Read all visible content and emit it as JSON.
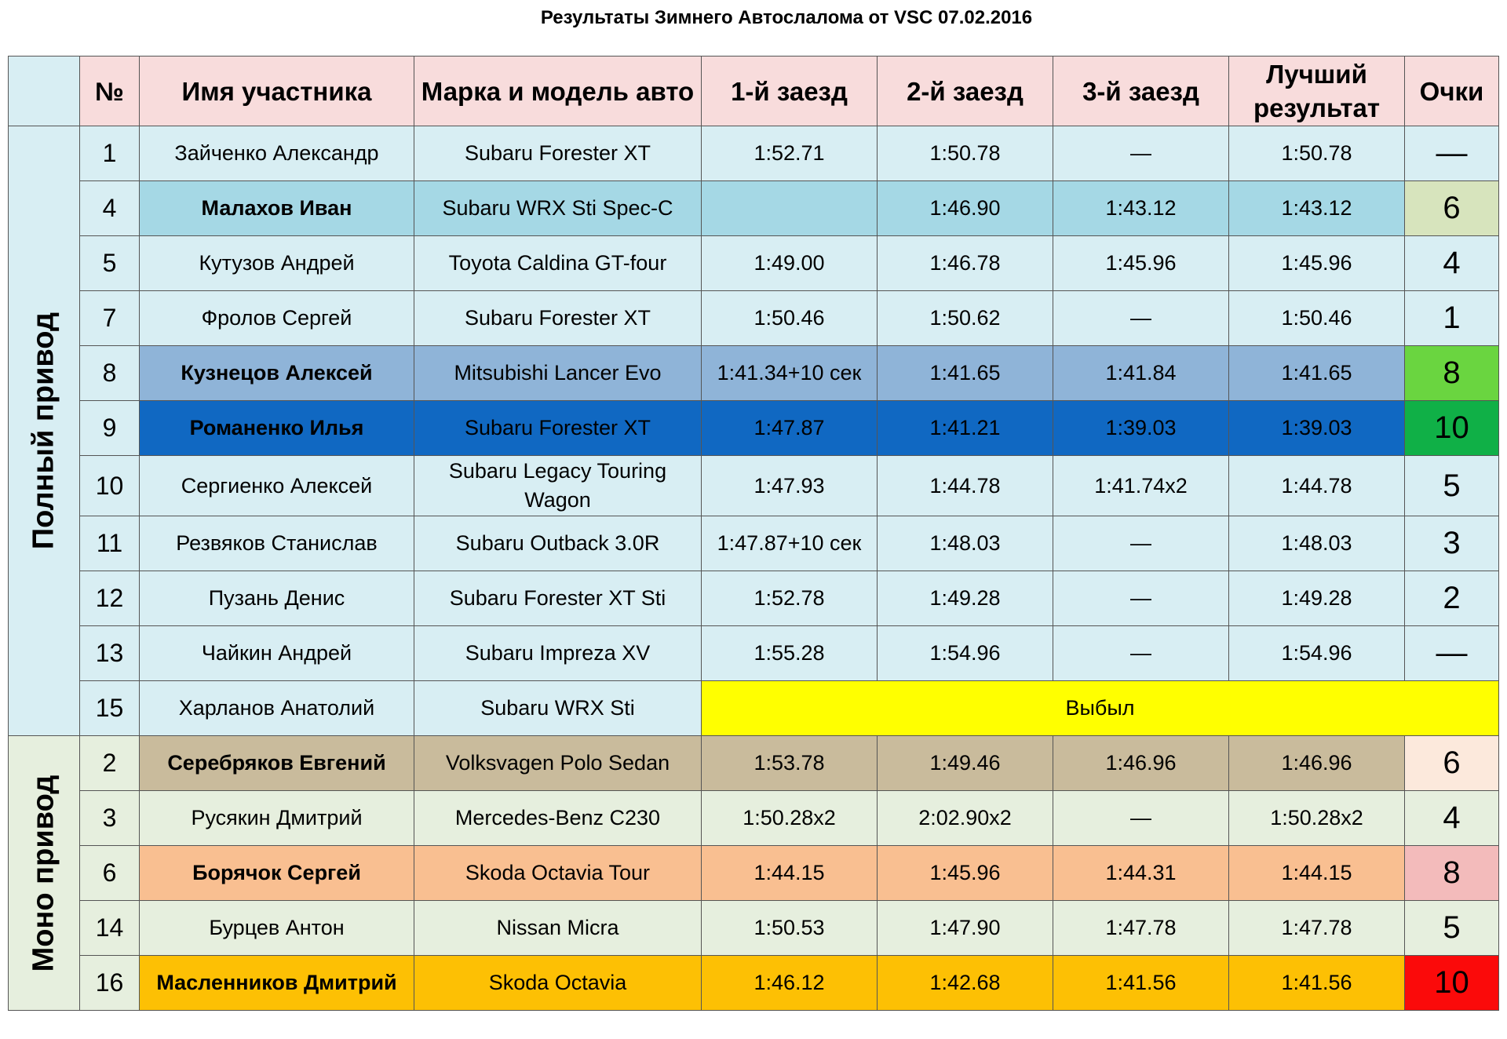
{
  "title": "Результаты Зимнего Автослалома от VSC  07.02.2016",
  "headers": {
    "num": "№",
    "name": "Имя участника",
    "car": "Марка и модель авто",
    "run1": "1-й заезд",
    "run2": "2-й заезд",
    "run3": "3-й заезд",
    "best": "Лучший результат",
    "points": "Очки"
  },
  "groups": {
    "awd": "Полный привод",
    "fwd": "Моно  привод"
  },
  "awd_rows": [
    {
      "num": "1",
      "name": "Зайченко Александр",
      "car": "Subaru Forester XT",
      "run1": "1:52.71",
      "run2": "1:50.78",
      "run3": "—",
      "best": "1:50.78",
      "points": "—"
    },
    {
      "num": "4",
      "name": "Малахов Иван",
      "car": "Subaru WRX Sti Spec-C",
      "run1": "",
      "run2": "1:46.90",
      "run3": "1:43.12",
      "best": "1:43.12",
      "points": "6"
    },
    {
      "num": "5",
      "name": "Кутузов Андрей",
      "car": "Toyota Caldina GT-four",
      "run1": "1:49.00",
      "run2": "1:46.78",
      "run3": "1:45.96",
      "best": "1:45.96",
      "points": "4"
    },
    {
      "num": "7",
      "name": "Фролов Сергей",
      "car": "Subaru Forester XT",
      "run1": "1:50.46",
      "run2": "1:50.62",
      "run3": "—",
      "best": "1:50.46",
      "points": "1"
    },
    {
      "num": "8",
      "name": "Кузнецов Алексей",
      "car": "Mitsubishi Lancer Evo",
      "run1": "1:41.34+10 сек",
      "run2": "1:41.65",
      "run3": "1:41.84",
      "best": "1:41.65",
      "points": "8"
    },
    {
      "num": "9",
      "name": "Романенко Илья",
      "car": "Subaru Forester XT",
      "run1": "1:47.87",
      "run2": "1:41.21",
      "run3": "1:39.03",
      "best": "1:39.03",
      "points": "10"
    },
    {
      "num": "10",
      "name": "Сергиенко Алексей",
      "car": "Subaru Legacy Touring Wagon",
      "run1": "1:47.93",
      "run2": "1:44.78",
      "run3": "1:41.74x2",
      "best": "1:44.78",
      "points": "5"
    },
    {
      "num": "11",
      "name": "Резвяков Станислав",
      "car": "Subaru Outback 3.0R",
      "run1": "1:47.87+10 сек",
      "run2": "1:48.03",
      "run3": "—",
      "best": "1:48.03",
      "points": "3"
    },
    {
      "num": "12",
      "name": "Пузань Денис",
      "car": "Subaru Forester XT Sti",
      "run1": "1:52.78",
      "run2": "1:49.28",
      "run3": "—",
      "best": "1:49.28",
      "points": "2"
    },
    {
      "num": "13",
      "name": "Чайкин Андрей",
      "car": "Subaru Impreza XV",
      "run1": "1:55.28",
      "run2": "1:54.96",
      "run3": "—",
      "best": "1:54.96",
      "points": "—"
    },
    {
      "num": "15",
      "name": "Харланов Анатолий",
      "car": "Subaru WRX Sti",
      "status": "Выбыл"
    }
  ],
  "fwd_rows": [
    {
      "num": "2",
      "name": "Серебряков Евгений",
      "car": "Volksvagen Polo Sedan",
      "run1": "1:53.78",
      "run2": "1:49.46",
      "run3": "1:46.96",
      "best": "1:46.96",
      "points": "6"
    },
    {
      "num": "3",
      "name": "Русякин Дмитрий",
      "car": "Mercedes-Benz C230",
      "run1": "1:50.28x2",
      "run2": "2:02.90x2",
      "run3": "—",
      "best": "1:50.28x2",
      "points": "4"
    },
    {
      "num": "6",
      "name": "Борячок Сергей",
      "car": "Skoda Octavia Tour",
      "run1": "1:44.15",
      "run2": "1:45.96",
      "run3": "1:44.31",
      "best": "1:44.15",
      "points": "8"
    },
    {
      "num": "14",
      "name": "Бурцев Антон",
      "car": "Nissan Micra",
      "run1": "1:50.53",
      "run2": "1:47.90",
      "run3": "1:47.78",
      "best": "1:47.78",
      "points": "5"
    },
    {
      "num": "16",
      "name": "Масленников Дмитрий",
      "car": "Skoda Octavia",
      "run1": "1:46.12",
      "run2": "1:42.68",
      "run3": "1:41.56",
      "best": "1:41.56",
      "points": "10"
    }
  ],
  "colors": {
    "header_bg": "#f8dcdc",
    "awd_bg": "#d8eef3",
    "fwd_bg": "#e6efde",
    "dropped_bg": "#ffff00"
  }
}
